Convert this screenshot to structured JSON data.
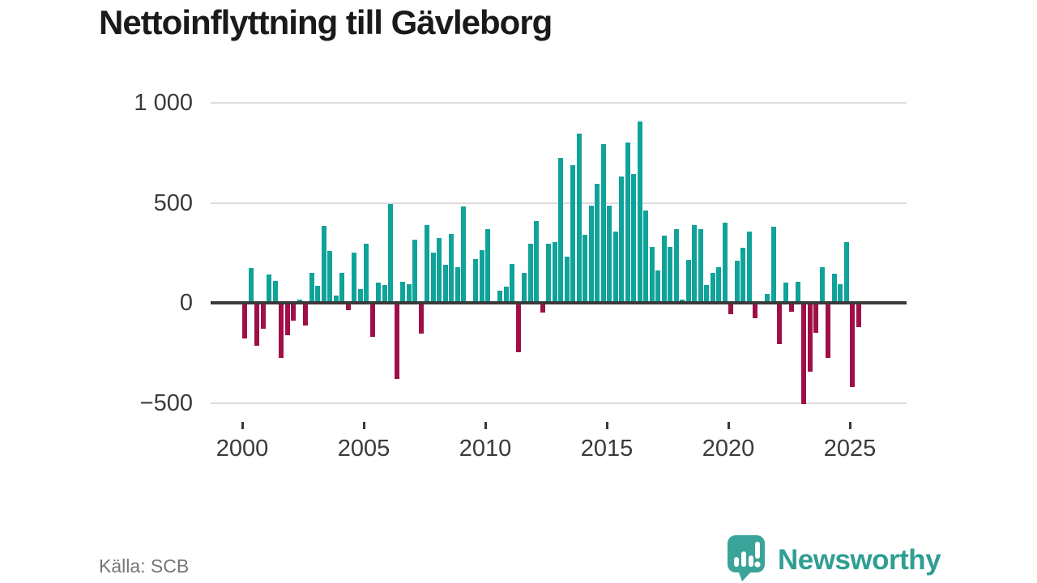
{
  "source_label": "Källa: SCB",
  "branding": {
    "name": "Newsworthy"
  },
  "colors": {
    "positive_bar": "#10a39a",
    "negative_bar": "#a00f47",
    "brand_teal": "#2f9e93",
    "title_text": "#1a1a1a",
    "axis_text": "#3a3a3a",
    "muted_text": "#757575",
    "gridline": "#dcdcdc",
    "zero_line": "#3a3a3a"
  },
  "chart_data": {
    "type": "bar",
    "title": "Nettoinflyttning till Gävleborg",
    "frequency": "quarterly",
    "start": "2000-Q1",
    "end": "2025-Q2",
    "ylim": [
      -500,
      1000
    ],
    "grid": "horizontal",
    "legend": "none",
    "yticks": [
      {
        "value": 1000,
        "label": "1 000"
      },
      {
        "value": 500,
        "label": "500"
      },
      {
        "value": 0,
        "label": "0"
      },
      {
        "value": -500,
        "label": "−500"
      }
    ],
    "xticks": [
      {
        "year": 2000,
        "label": "2000"
      },
      {
        "year": 2005,
        "label": "2005"
      },
      {
        "year": 2010,
        "label": "2010"
      },
      {
        "year": 2015,
        "label": "2015"
      },
      {
        "year": 2020,
        "label": "2020"
      },
      {
        "year": 2025,
        "label": "2025"
      }
    ],
    "series": [
      {
        "name": "Nettoinflyttning",
        "values": [
          -180,
          175,
          -215,
          -130,
          140,
          110,
          -275,
          -160,
          -90,
          15,
          -115,
          150,
          85,
          385,
          260,
          35,
          150,
          -35,
          250,
          70,
          295,
          -170,
          100,
          90,
          495,
          -380,
          105,
          95,
          315,
          -155,
          390,
          250,
          325,
          190,
          345,
          180,
          480,
          0,
          220,
          265,
          370,
          0,
          60,
          80,
          195,
          -245,
          150,
          295,
          410,
          -50,
          295,
          305,
          725,
          230,
          690,
          845,
          340,
          485,
          595,
          795,
          485,
          355,
          630,
          800,
          645,
          905,
          460,
          280,
          160,
          335,
          280,
          370,
          15,
          215,
          390,
          370,
          90,
          150,
          180,
          400,
          -55,
          210,
          275,
          355,
          -75,
          10,
          45,
          380,
          -205,
          100,
          -45,
          105,
          -505,
          -345,
          -150,
          180,
          -275,
          145,
          95,
          305,
          -420,
          -120
        ]
      }
    ]
  }
}
